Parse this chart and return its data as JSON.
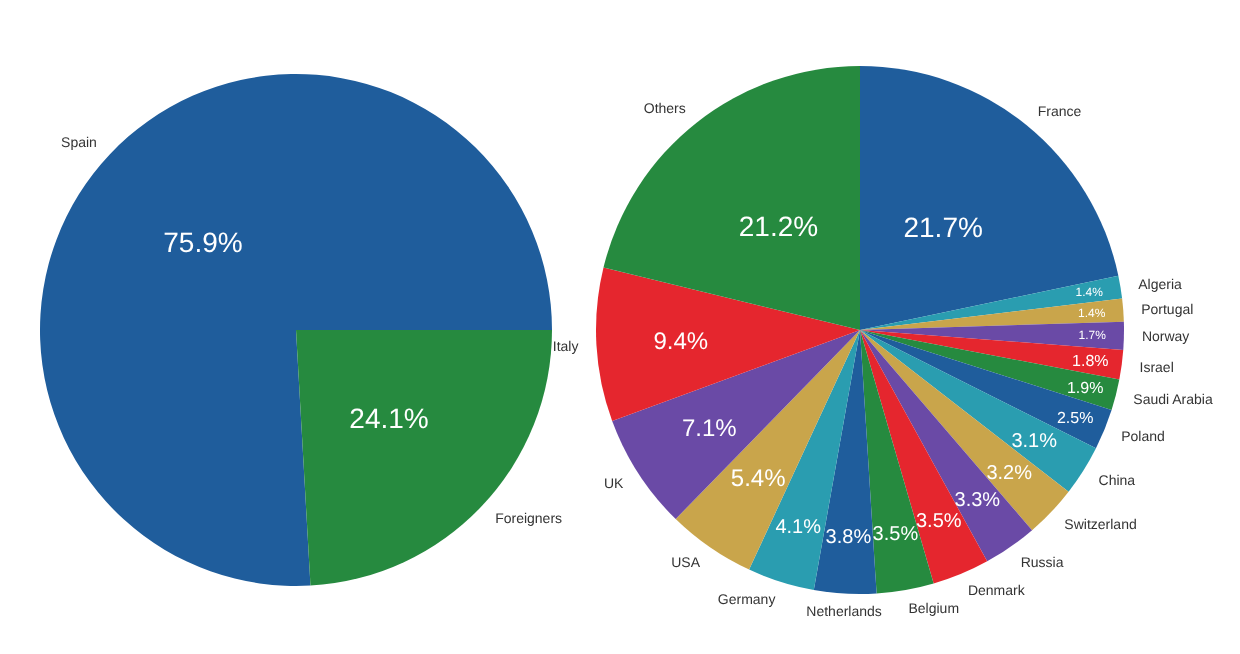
{
  "chart_data": [
    {
      "type": "pie",
      "categories": [
        "Spain",
        "Foreigners"
      ],
      "values": [
        75.9,
        24.1
      ],
      "colors": [
        "#1f5d9c",
        "#268a3f"
      ],
      "value_labels": [
        "75.9%",
        "24.1%"
      ]
    },
    {
      "type": "pie",
      "categories": [
        "France",
        "Algeria",
        "Portugal",
        "Norway",
        "Israel",
        "Saudi Arabia",
        "Poland",
        "China",
        "Switzerland",
        "Russia",
        "Denmark",
        "Belgium",
        "Netherlands",
        "Germany",
        "USA",
        "UK",
        "Italy",
        "Others"
      ],
      "values": [
        21.7,
        1.4,
        1.4,
        1.7,
        1.8,
        1.9,
        2.5,
        3.1,
        3.2,
        3.3,
        3.5,
        3.5,
        3.8,
        4.1,
        5.4,
        7.1,
        9.4,
        21.2
      ],
      "colors": [
        "#1f5d9c",
        "#2a9db0",
        "#c9a54b",
        "#6a4aa6",
        "#e5262e",
        "#268a3f",
        "#1f5d9c",
        "#2a9db0",
        "#c9a54b",
        "#6a4aa6",
        "#e5262e",
        "#268a3f",
        "#1f5d9c",
        "#2a9db0",
        "#c9a54b",
        "#6a4aa6",
        "#e5262e",
        "#268a3f"
      ],
      "value_labels": [
        "21.7%",
        "1.4%",
        "1.4%",
        "1.7%",
        "1.8%",
        "1.9%",
        "2.5%",
        "3.1%",
        "3.2%",
        "3.3%",
        "3.5%",
        "3.5%",
        "3.8%",
        "4.1%",
        "5.4%",
        "7.1%",
        "9.4%",
        "21.2%"
      ]
    }
  ]
}
